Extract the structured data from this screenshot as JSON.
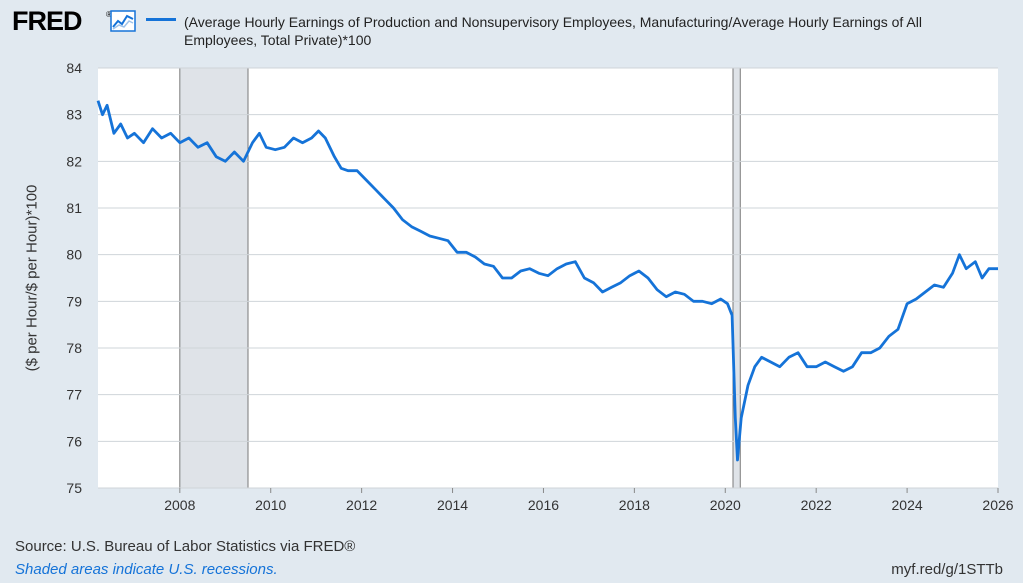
{
  "header": {
    "logo": "FRED",
    "logo_mark": "®",
    "chart_icon": "line-chart-icon",
    "legend_label": "(Average Hourly Earnings of Production and Nonsupervisory Employees, Manufacturing/Average Hourly Earnings of All Employees, Total Private)*100"
  },
  "colors": {
    "series": "#1573d8",
    "recession": "#dfe3e8",
    "background": "#e1e9f0",
    "plot": "#ffffff"
  },
  "footer": {
    "source": "Source: U.S. Bureau of Labor Statistics via FRED®",
    "note": "Shaded areas indicate U.S. recessions.",
    "link": "myf.red/g/1STTb"
  },
  "chart_data": {
    "type": "line",
    "title": "",
    "xlabel": "",
    "ylabel": "($ per Hour/$ per Hour)*100",
    "xlim": [
      2006.2,
      2026.0
    ],
    "ylim": [
      75,
      84
    ],
    "x_ticks": [
      "2008",
      "2010",
      "2012",
      "2014",
      "2016",
      "2018",
      "2020",
      "2022",
      "2024",
      "2026"
    ],
    "y_ticks": [
      "75",
      "76",
      "77",
      "78",
      "79",
      "80",
      "81",
      "82",
      "83",
      "84"
    ],
    "grid": "horizontal",
    "recessions": [
      [
        2008.0,
        2009.5
      ],
      [
        2020.17,
        2020.33
      ]
    ],
    "series": [
      {
        "name": "(Average Hourly Earnings of Production and Nonsupervisory Employees, Manufacturing/Average Hourly Earnings of All Employees, Total Private)*100",
        "points": [
          [
            2006.2,
            83.3
          ],
          [
            2006.3,
            83.0
          ],
          [
            2006.4,
            83.2
          ],
          [
            2006.55,
            82.6
          ],
          [
            2006.7,
            82.8
          ],
          [
            2006.85,
            82.5
          ],
          [
            2007.0,
            82.6
          ],
          [
            2007.2,
            82.4
          ],
          [
            2007.4,
            82.7
          ],
          [
            2007.6,
            82.5
          ],
          [
            2007.8,
            82.6
          ],
          [
            2008.0,
            82.4
          ],
          [
            2008.2,
            82.5
          ],
          [
            2008.4,
            82.3
          ],
          [
            2008.6,
            82.4
          ],
          [
            2008.8,
            82.1
          ],
          [
            2009.0,
            82.0
          ],
          [
            2009.2,
            82.2
          ],
          [
            2009.4,
            82.0
          ],
          [
            2009.6,
            82.4
          ],
          [
            2009.75,
            82.6
          ],
          [
            2009.9,
            82.3
          ],
          [
            2010.1,
            82.25
          ],
          [
            2010.3,
            82.3
          ],
          [
            2010.5,
            82.5
          ],
          [
            2010.7,
            82.4
          ],
          [
            2010.9,
            82.5
          ],
          [
            2011.05,
            82.65
          ],
          [
            2011.2,
            82.5
          ],
          [
            2011.4,
            82.1
          ],
          [
            2011.55,
            81.85
          ],
          [
            2011.7,
            81.8
          ],
          [
            2011.9,
            81.8
          ],
          [
            2012.1,
            81.6
          ],
          [
            2012.3,
            81.4
          ],
          [
            2012.5,
            81.2
          ],
          [
            2012.7,
            81.0
          ],
          [
            2012.9,
            80.75
          ],
          [
            2013.1,
            80.6
          ],
          [
            2013.3,
            80.5
          ],
          [
            2013.5,
            80.4
          ],
          [
            2013.7,
            80.35
          ],
          [
            2013.9,
            80.3
          ],
          [
            2014.1,
            80.05
          ],
          [
            2014.3,
            80.05
          ],
          [
            2014.5,
            79.95
          ],
          [
            2014.7,
            79.8
          ],
          [
            2014.9,
            79.75
          ],
          [
            2015.1,
            79.5
          ],
          [
            2015.3,
            79.5
          ],
          [
            2015.5,
            79.65
          ],
          [
            2015.7,
            79.7
          ],
          [
            2015.9,
            79.6
          ],
          [
            2016.1,
            79.55
          ],
          [
            2016.3,
            79.7
          ],
          [
            2016.5,
            79.8
          ],
          [
            2016.7,
            79.85
          ],
          [
            2016.9,
            79.5
          ],
          [
            2017.1,
            79.4
          ],
          [
            2017.3,
            79.2
          ],
          [
            2017.5,
            79.3
          ],
          [
            2017.7,
            79.4
          ],
          [
            2017.9,
            79.55
          ],
          [
            2018.1,
            79.65
          ],
          [
            2018.3,
            79.5
          ],
          [
            2018.5,
            79.25
          ],
          [
            2018.7,
            79.1
          ],
          [
            2018.9,
            79.2
          ],
          [
            2019.1,
            79.15
          ],
          [
            2019.3,
            79.0
          ],
          [
            2019.5,
            79.0
          ],
          [
            2019.7,
            78.95
          ],
          [
            2019.9,
            79.05
          ],
          [
            2020.05,
            78.95
          ],
          [
            2020.15,
            78.7
          ],
          [
            2020.22,
            76.5
          ],
          [
            2020.27,
            75.6
          ],
          [
            2020.35,
            76.5
          ],
          [
            2020.5,
            77.2
          ],
          [
            2020.65,
            77.6
          ],
          [
            2020.8,
            77.8
          ],
          [
            2021.0,
            77.7
          ],
          [
            2021.2,
            77.6
          ],
          [
            2021.4,
            77.8
          ],
          [
            2021.6,
            77.9
          ],
          [
            2021.8,
            77.6
          ],
          [
            2022.0,
            77.6
          ],
          [
            2022.2,
            77.7
          ],
          [
            2022.4,
            77.6
          ],
          [
            2022.6,
            77.5
          ],
          [
            2022.8,
            77.6
          ],
          [
            2023.0,
            77.9
          ],
          [
            2023.2,
            77.9
          ],
          [
            2023.4,
            78.0
          ],
          [
            2023.6,
            78.25
          ],
          [
            2023.8,
            78.4
          ],
          [
            2024.0,
            78.95
          ],
          [
            2024.2,
            79.05
          ],
          [
            2024.4,
            79.2
          ],
          [
            2024.6,
            79.35
          ],
          [
            2024.8,
            79.3
          ],
          [
            2025.0,
            79.6
          ],
          [
            2025.15,
            80.0
          ],
          [
            2025.3,
            79.7
          ],
          [
            2025.5,
            79.85
          ],
          [
            2025.65,
            79.5
          ],
          [
            2025.8,
            79.7
          ],
          [
            2026.0,
            79.7
          ]
        ]
      }
    ]
  }
}
